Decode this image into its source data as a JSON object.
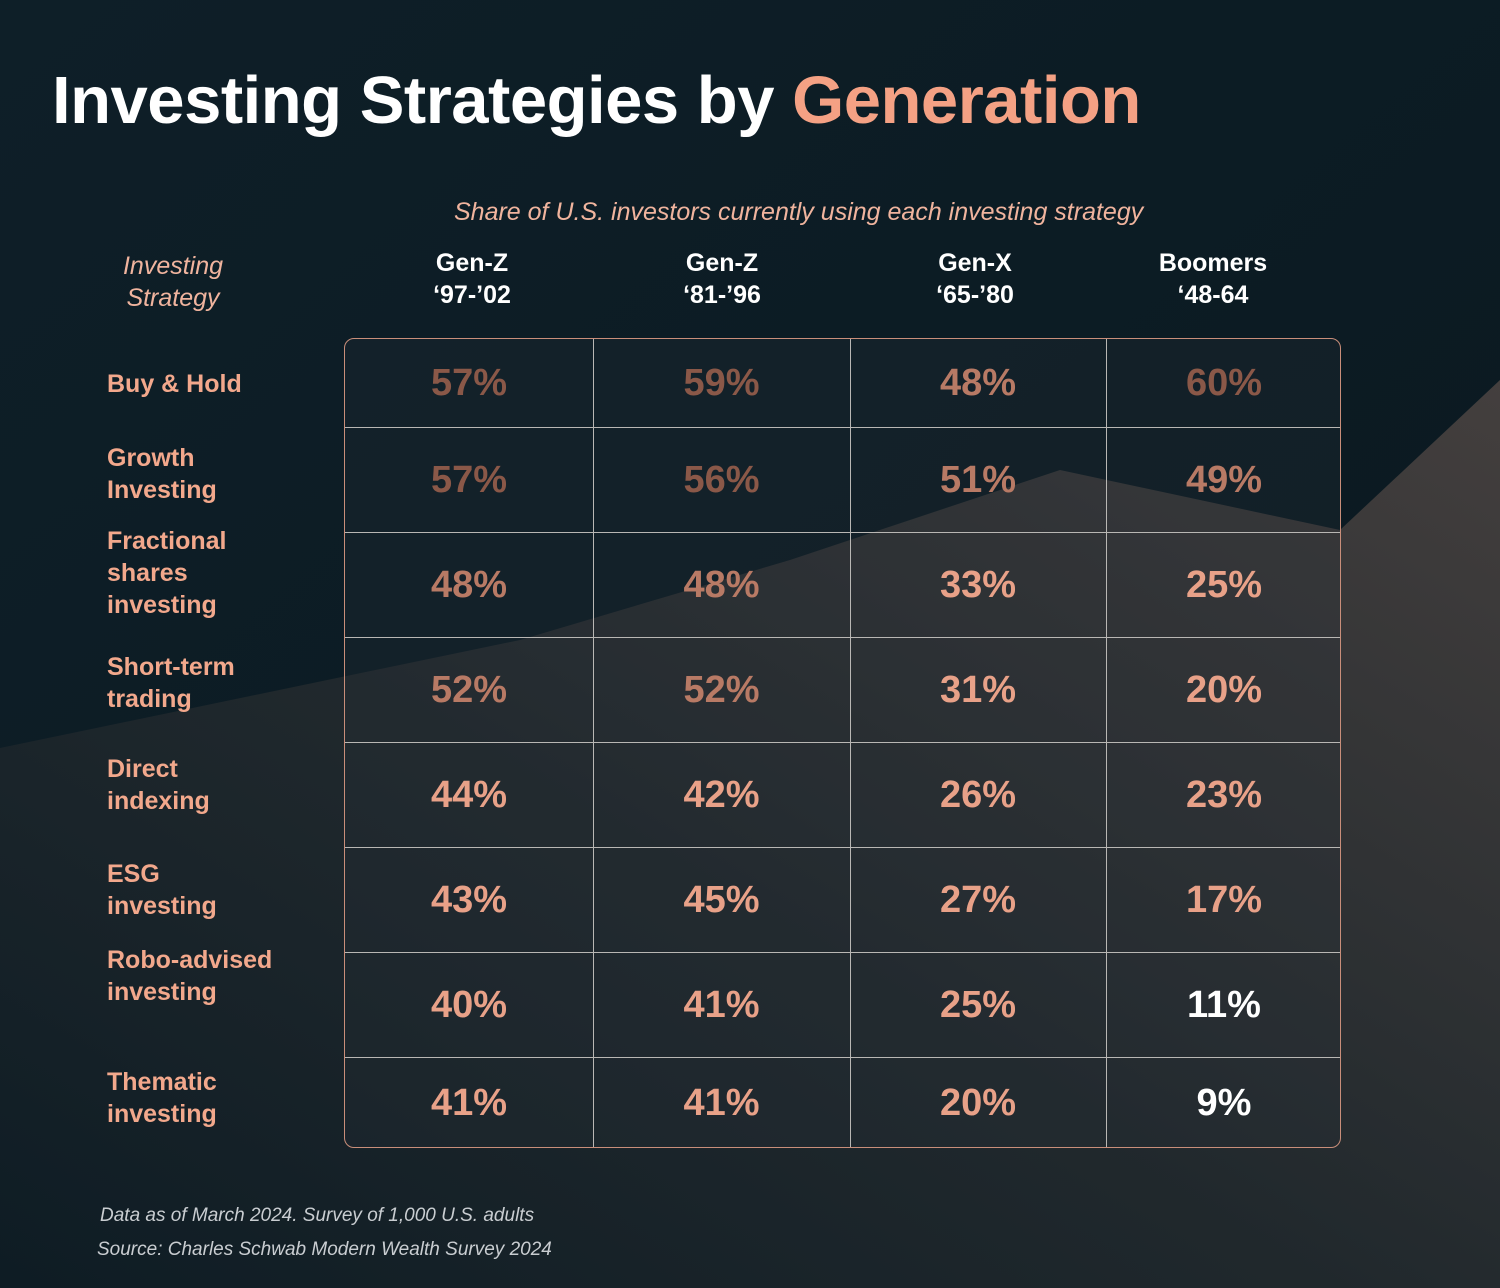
{
  "title": {
    "main": "Investing Strategies by ",
    "accent": "Generation"
  },
  "chart_data": {
    "type": "table",
    "subtitle": "Share of U.S. investors currently using each investing strategy",
    "row_header_label": "Investing Strategy",
    "columns": [
      {
        "name": "Gen-Z",
        "years": "‘97-’02"
      },
      {
        "name": "Gen-Z",
        "years": "‘81-’96"
      },
      {
        "name": "Gen-X",
        "years": "‘65-’80"
      },
      {
        "name": "Boomers",
        "years": "‘48-64"
      }
    ],
    "rows": [
      {
        "strategy": "Buy & Hold",
        "values": [
          "57%",
          "59%",
          "48%",
          "60%"
        ]
      },
      {
        "strategy": "Growth Investing",
        "values": [
          "57%",
          "56%",
          "51%",
          "49%"
        ]
      },
      {
        "strategy": "Fractional shares investing",
        "values": [
          "48%",
          "48%",
          "33%",
          "25%"
        ]
      },
      {
        "strategy": "Short-term trading",
        "values": [
          "52%",
          "52%",
          "31%",
          "20%"
        ]
      },
      {
        "strategy": "Direct indexing",
        "values": [
          "44%",
          "42%",
          "26%",
          "23%"
        ]
      },
      {
        "strategy": "ESG investing",
        "values": [
          "43%",
          "45%",
          "27%",
          "17%"
        ]
      },
      {
        "strategy": "Robo-advised investing",
        "values": [
          "40%",
          "41%",
          "25%",
          "11%"
        ]
      },
      {
        "strategy": "Thematic investing",
        "values": [
          "41%",
          "41%",
          "20%",
          "9%"
        ]
      }
    ]
  },
  "footer": {
    "note": "Data as of March 2024. Survey of 1,000 U.S. adults",
    "source": "Source: Charles Schwab Modern Wealth Survey 2024"
  },
  "colors": {
    "background": "#0d1d26",
    "accent": "#f4a184",
    "value_dark": "#8a5848",
    "value_mid": "#b87a65",
    "value_light": "#e8a188",
    "value_white": "#ffffff"
  }
}
